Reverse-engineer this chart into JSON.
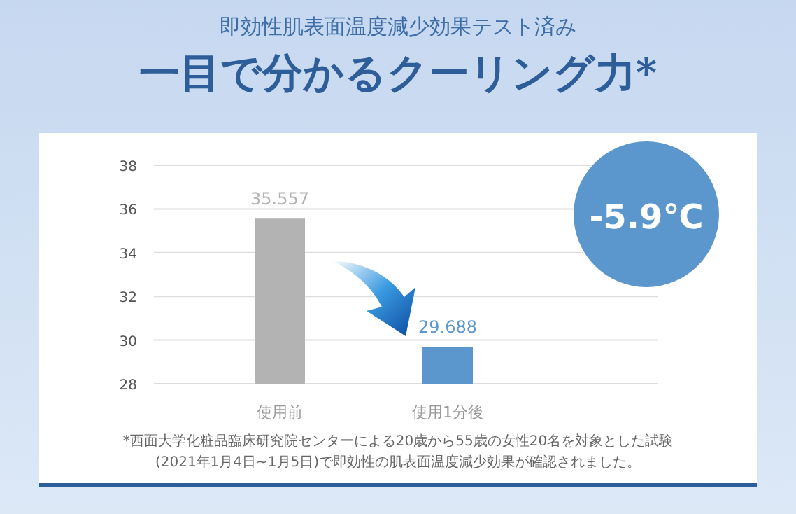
{
  "chart_data": {
    "type": "bar",
    "title": "一目で分かるクーリング力*",
    "subtitle": "即効性肌表面温度減少効果テスト済み",
    "categories": [
      "使用前",
      "使用1分後"
    ],
    "values": [
      35.557,
      29.688
    ],
    "colors": [
      "#b3b3b3",
      "#5b96cc"
    ],
    "ylim": [
      28,
      38
    ],
    "yticks": [
      28,
      30,
      32,
      34,
      36,
      38
    ],
    "grid": "y",
    "data_labels": true,
    "annotations": [
      "-5.9℃",
      "*西面大学化粧品臨床研究院センターによる20歳から55歳の女性20名を対象とした試験",
      "(2021年1月4日~1月5日)で即効性の肌表面温度減少効果が確認されました。"
    ]
  }
}
